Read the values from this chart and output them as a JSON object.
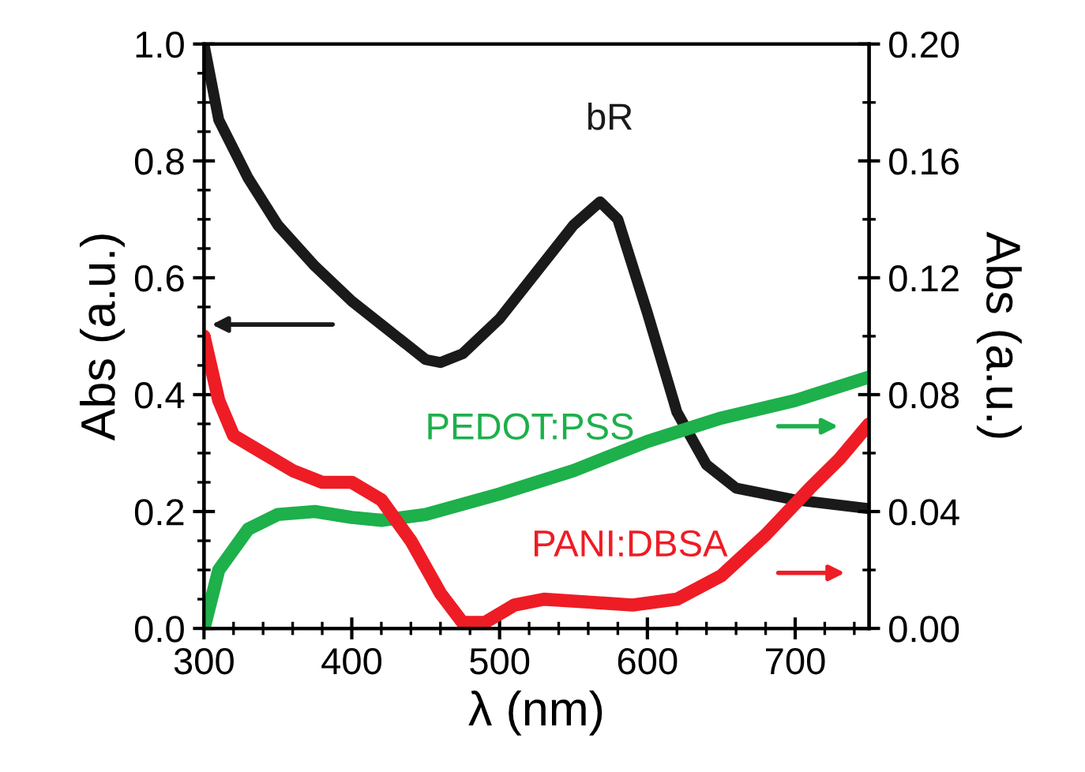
{
  "chart_data": {
    "type": "line",
    "xlabel": "λ (nm)",
    "ylabel": "Abs (a.u.)",
    "y2label": "Abs (a.u.)",
    "legend": false,
    "grid": false,
    "xlim": [
      300,
      750
    ],
    "xticks": [
      300,
      400,
      500,
      600,
      700
    ],
    "ylim": [
      0,
      1.0
    ],
    "yticks": [
      {
        "value": 0,
        "label": "0.0"
      },
      {
        "value": 0.2,
        "label": "0.2"
      },
      {
        "value": 0.4,
        "label": "0.4"
      },
      {
        "value": 0.6,
        "label": "0.6"
      },
      {
        "value": 0.8,
        "label": "0.8"
      },
      {
        "value": 1.0,
        "label": "1.0"
      }
    ],
    "y2lim": [
      0,
      0.2
    ],
    "y2ticks": [
      {
        "value": 0,
        "label": "0.00"
      },
      {
        "value": 0.04,
        "label": "0.04"
      },
      {
        "value": 0.08,
        "label": "0.08"
      },
      {
        "value": 0.12,
        "label": "0.12"
      },
      {
        "value": 0.16,
        "label": "0.16"
      },
      {
        "value": 0.2,
        "label": "0.20"
      }
    ],
    "series": [
      {
        "name": "bR",
        "color": "#1a1a1a",
        "x": [
          300,
          310,
          330,
          350,
          375,
          400,
          425,
          450,
          460,
          475,
          500,
          525,
          550,
          568,
          580,
          590,
          600,
          620,
          640,
          660,
          700,
          750
        ],
        "values": [
          1.0,
          0.87,
          0.77,
          0.69,
          0.62,
          0.56,
          0.51,
          0.46,
          0.455,
          0.47,
          0.53,
          0.61,
          0.69,
          0.73,
          0.7,
          0.62,
          0.54,
          0.37,
          0.28,
          0.24,
          0.22,
          0.205
        ]
      },
      {
        "name": "PEDOT:PSS",
        "color": "#1db04b",
        "axis": "y2",
        "x": [
          300,
          310,
          330,
          350,
          375,
          400,
          420,
          450,
          500,
          550,
          600,
          650,
          700,
          750
        ],
        "values": [
          0,
          0.02,
          0.034,
          0.039,
          0.04,
          0.038,
          0.037,
          0.039,
          0.046,
          0.054,
          0.064,
          0.072,
          0.078,
          0.086
        ]
      },
      {
        "name": "PANI:DBSA",
        "color": "#ee1c25",
        "axis": "y2",
        "x": [
          300,
          310,
          320,
          340,
          360,
          380,
          400,
          420,
          440,
          460,
          475,
          490,
          510,
          530,
          560,
          590,
          620,
          650,
          680,
          710,
          730,
          750
        ],
        "values": [
          0.1,
          0.078,
          0.066,
          0.06,
          0.054,
          0.05,
          0.05,
          0.044,
          0.03,
          0.012,
          0.002,
          0.002,
          0.008,
          0.01,
          0.009,
          0.008,
          0.01,
          0.018,
          0.032,
          0.048,
          0.058,
          0.07
        ]
      }
    ]
  }
}
